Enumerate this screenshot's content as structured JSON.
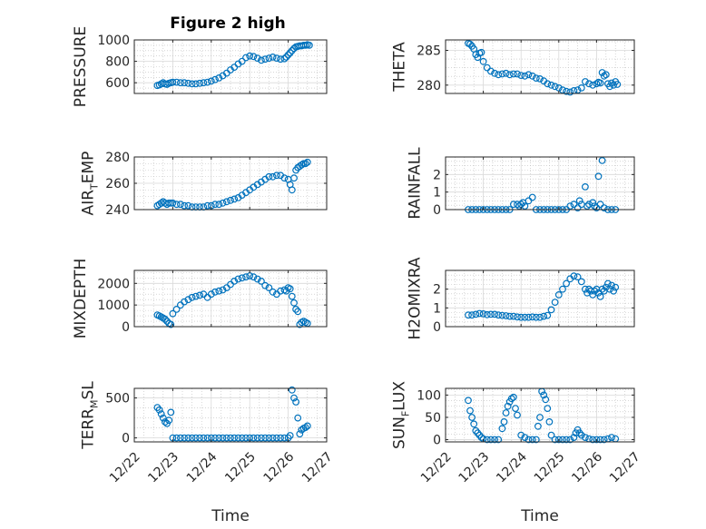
{
  "figure": {
    "title": "Figure 2 high",
    "marker_color": "#0072BD",
    "time_axis": {
      "xlabel": "Time",
      "xlim": [
        "12/22",
        "12/27"
      ],
      "tick_labels": [
        "12/22",
        "12/23",
        "12/24",
        "12/25",
        "12/26",
        "12/27"
      ]
    }
  },
  "chart_data": [
    {
      "type": "scatter",
      "title": "Figure 2 high",
      "ylabel": {
        "main": "PRESSURE",
        "sub": "",
        "rest": ""
      },
      "ylim": [
        500,
        1000
      ],
      "yticks": [
        600,
        800,
        1000
      ],
      "xlabel": "",
      "grid": true,
      "x": [
        22.6,
        22.65,
        22.7,
        22.75,
        22.8,
        22.85,
        22.9,
        22.95,
        23.0,
        23.1,
        23.2,
        23.3,
        23.4,
        23.5,
        23.6,
        23.7,
        23.8,
        23.9,
        24.0,
        24.1,
        24.2,
        24.3,
        24.4,
        24.5,
        24.6,
        24.7,
        24.8,
        24.9,
        25.0,
        25.1,
        25.2,
        25.3,
        25.4,
        25.5,
        25.6,
        25.7,
        25.8,
        25.9,
        25.95,
        26.0,
        26.05,
        26.1,
        26.15,
        26.2,
        26.25,
        26.3,
        26.35,
        26.4,
        26.45,
        26.5,
        26.55
      ],
      "y": [
        575,
        580,
        590,
        600,
        590,
        585,
        595,
        600,
        605,
        605,
        600,
        600,
        595,
        590,
        590,
        595,
        600,
        605,
        615,
        630,
        645,
        665,
        690,
        720,
        745,
        775,
        800,
        835,
        850,
        845,
        830,
        810,
        820,
        830,
        840,
        830,
        820,
        825,
        840,
        860,
        880,
        900,
        920,
        935,
        940,
        945,
        945,
        950,
        950,
        955,
        950
      ]
    },
    {
      "type": "scatter",
      "ylabel": {
        "main": "THETA",
        "sub": "",
        "rest": ""
      },
      "ylim": [
        278.8,
        286.5
      ],
      "yticks": [
        280,
        285
      ],
      "xlabel": "",
      "grid": true,
      "x": [
        22.6,
        22.65,
        22.7,
        22.75,
        22.8,
        22.85,
        22.9,
        22.95,
        23.0,
        23.1,
        23.2,
        23.3,
        23.4,
        23.5,
        23.6,
        23.7,
        23.8,
        23.9,
        24.0,
        24.1,
        24.2,
        24.3,
        24.4,
        24.5,
        24.6,
        24.7,
        24.8,
        24.9,
        25.0,
        25.1,
        25.2,
        25.3,
        25.4,
        25.5,
        25.6,
        25.7,
        25.8,
        25.9,
        26.0,
        26.05,
        26.1,
        26.15,
        26.2,
        26.25,
        26.3,
        26.35,
        26.4,
        26.45,
        26.5,
        26.55
      ],
      "y": [
        286.0,
        285.9,
        285.6,
        285.2,
        284.4,
        284.0,
        284.6,
        284.7,
        283.4,
        282.5,
        282.0,
        281.7,
        281.5,
        281.6,
        281.7,
        281.5,
        281.6,
        281.6,
        281.4,
        281.3,
        281.5,
        281.3,
        281.0,
        280.9,
        280.6,
        280.2,
        280.0,
        279.8,
        279.6,
        279.3,
        279.1,
        279.0,
        279.2,
        279.3,
        279.6,
        280.5,
        280.2,
        280.0,
        280.2,
        280.4,
        280.3,
        281.8,
        281.3,
        281.5,
        280.2,
        279.8,
        280.3,
        280.0,
        280.5,
        280.1
      ]
    },
    {
      "type": "scatter",
      "ylabel": {
        "main": "AIR",
        "sub": "T",
        "rest": "EMP"
      },
      "ylim": [
        240,
        280
      ],
      "yticks": [
        240,
        260,
        280
      ],
      "xlabel": "",
      "grid": true,
      "x": [
        22.6,
        22.65,
        22.7,
        22.75,
        22.8,
        22.85,
        22.9,
        22.95,
        23.0,
        23.1,
        23.2,
        23.3,
        23.4,
        23.5,
        23.6,
        23.7,
        23.8,
        23.9,
        24.0,
        24.1,
        24.2,
        24.3,
        24.4,
        24.5,
        24.6,
        24.7,
        24.8,
        24.9,
        25.0,
        25.1,
        25.2,
        25.3,
        25.4,
        25.5,
        25.6,
        25.7,
        25.8,
        25.9,
        26.0,
        26.05,
        26.1,
        26.15,
        26.2,
        26.25,
        26.3,
        26.35,
        26.4,
        26.45,
        26.5
      ],
      "y": [
        243,
        244,
        245,
        246,
        245,
        244,
        245,
        245,
        245,
        244,
        244,
        243,
        243,
        242,
        242,
        242,
        242,
        243,
        243,
        244,
        244,
        245,
        246,
        247,
        248,
        249,
        251,
        253,
        255,
        257,
        259,
        261,
        263,
        265,
        265,
        266,
        266,
        264,
        263,
        259,
        255,
        264,
        270,
        272,
        273,
        274,
        275,
        275,
        276
      ]
    },
    {
      "type": "scatter",
      "ylabel": {
        "main": "RAINFALL",
        "sub": "",
        "rest": ""
      },
      "ylim": [
        0,
        3
      ],
      "yticks": [
        0,
        1,
        2
      ],
      "xlabel": "",
      "grid": true,
      "x": [
        22.6,
        22.7,
        22.8,
        22.9,
        23.0,
        23.1,
        23.2,
        23.3,
        23.4,
        23.5,
        23.6,
        23.7,
        23.8,
        23.9,
        23.95,
        24.0,
        24.05,
        24.1,
        24.2,
        24.3,
        24.4,
        24.5,
        24.6,
        24.7,
        24.8,
        24.9,
        25.0,
        25.1,
        25.2,
        25.3,
        25.4,
        25.5,
        25.55,
        25.6,
        25.7,
        25.75,
        25.8,
        25.9,
        25.95,
        26.0,
        26.05,
        26.1,
        26.15,
        26.2,
        26.3,
        26.4,
        26.5
      ],
      "y": [
        0,
        0,
        0,
        0,
        0,
        0,
        0,
        0,
        0,
        0,
        0,
        0,
        0.3,
        0.3,
        0.2,
        0.3,
        0.4,
        0.2,
        0.5,
        0.7,
        0,
        0,
        0,
        0,
        0,
        0,
        0,
        0,
        0,
        0.2,
        0.3,
        0.1,
        0.5,
        0.3,
        1.3,
        0.2,
        0.3,
        0.4,
        0.2,
        0.1,
        1.9,
        0.3,
        2.8,
        0.1,
        0,
        0,
        0
      ]
    },
    {
      "type": "scatter",
      "ylabel": {
        "main": "MIXDEPTH",
        "sub": "",
        "rest": ""
      },
      "ylim": [
        0,
        2600
      ],
      "yticks": [
        0,
        1000,
        2000
      ],
      "xlabel": "",
      "grid": true,
      "x": [
        22.6,
        22.65,
        22.7,
        22.75,
        22.8,
        22.85,
        22.9,
        22.95,
        23.0,
        23.1,
        23.2,
        23.3,
        23.4,
        23.5,
        23.6,
        23.7,
        23.8,
        23.9,
        24.0,
        24.1,
        24.2,
        24.3,
        24.4,
        24.5,
        24.6,
        24.7,
        24.8,
        24.9,
        25.0,
        25.1,
        25.2,
        25.3,
        25.4,
        25.5,
        25.6,
        25.7,
        25.8,
        25.9,
        25.95,
        26.0,
        26.05,
        26.1,
        26.15,
        26.2,
        26.25,
        26.3,
        26.35,
        26.4,
        26.45,
        26.5
      ],
      "y": [
        540,
        500,
        450,
        400,
        350,
        250,
        150,
        100,
        600,
        800,
        1000,
        1150,
        1250,
        1350,
        1400,
        1450,
        1500,
        1350,
        1500,
        1600,
        1650,
        1700,
        1800,
        1950,
        2100,
        2200,
        2250,
        2300,
        2350,
        2300,
        2200,
        2100,
        1900,
        1800,
        1600,
        1500,
        1650,
        1700,
        1650,
        1800,
        1750,
        1400,
        1100,
        800,
        700,
        100,
        200,
        250,
        200,
        150
      ]
    },
    {
      "type": "scatter",
      "ylabel": {
        "main": "H2OMIXRA",
        "sub": "",
        "rest": ""
      },
      "ylim": [
        0,
        3
      ],
      "yticks": [
        0,
        1,
        2
      ],
      "xlabel": "",
      "grid": true,
      "x": [
        22.6,
        22.7,
        22.8,
        22.9,
        23.0,
        23.1,
        23.2,
        23.3,
        23.4,
        23.5,
        23.6,
        23.7,
        23.8,
        23.9,
        24.0,
        24.1,
        24.2,
        24.3,
        24.4,
        24.5,
        24.6,
        24.7,
        24.8,
        24.9,
        25.0,
        25.1,
        25.2,
        25.3,
        25.4,
        25.5,
        25.6,
        25.7,
        25.75,
        25.8,
        25.85,
        25.9,
        25.95,
        26.0,
        26.05,
        26.1,
        26.15,
        26.2,
        26.25,
        26.3,
        26.35,
        26.4,
        26.45,
        26.5
      ],
      "y": [
        0.62,
        0.62,
        0.66,
        0.7,
        0.68,
        0.64,
        0.66,
        0.66,
        0.62,
        0.6,
        0.58,
        0.55,
        0.55,
        0.52,
        0.5,
        0.5,
        0.5,
        0.52,
        0.5,
        0.5,
        0.55,
        0.6,
        0.9,
        1.3,
        1.7,
        2.0,
        2.3,
        2.55,
        2.7,
        2.65,
        2.4,
        2.0,
        1.8,
        2.0,
        1.9,
        1.7,
        1.9,
        2.0,
        1.8,
        1.6,
        2.0,
        1.9,
        2.1,
        2.3,
        2.0,
        2.2,
        1.9,
        2.1
      ]
    },
    {
      "type": "scatter",
      "ylabel": {
        "main": "TERR",
        "sub": "M",
        "rest": "SL"
      },
      "ylim": [
        -50,
        620
      ],
      "yticks": [
        0,
        500
      ],
      "xlabel": "Time",
      "grid": true,
      "x": [
        22.6,
        22.65,
        22.7,
        22.75,
        22.8,
        22.85,
        22.9,
        22.95,
        23.0,
        23.1,
        23.2,
        23.3,
        23.4,
        23.5,
        23.6,
        23.7,
        23.8,
        23.9,
        24.0,
        24.1,
        24.2,
        24.3,
        24.4,
        24.5,
        24.6,
        24.7,
        24.8,
        24.9,
        25.0,
        25.1,
        25.2,
        25.3,
        25.4,
        25.5,
        25.6,
        25.7,
        25.8,
        25.9,
        26.0,
        26.05,
        26.1,
        26.15,
        26.2,
        26.25,
        26.3,
        26.35,
        26.4,
        26.45,
        26.5
      ],
      "y": [
        380,
        350,
        300,
        250,
        200,
        180,
        220,
        320,
        0,
        0,
        0,
        0,
        0,
        0,
        0,
        0,
        0,
        0,
        0,
        0,
        0,
        0,
        0,
        0,
        0,
        0,
        0,
        0,
        0,
        0,
        0,
        0,
        0,
        0,
        0,
        0,
        0,
        0,
        0,
        30,
        600,
        500,
        450,
        250,
        50,
        100,
        120,
        130,
        150
      ]
    },
    {
      "type": "scatter",
      "ylabel": {
        "main": "SUN",
        "sub": "F",
        "rest": "LUX"
      },
      "ylim": [
        -5,
        115
      ],
      "yticks": [
        0,
        50,
        100
      ],
      "xlabel": "Time",
      "grid": true,
      "x": [
        22.6,
        22.65,
        22.7,
        22.75,
        22.8,
        22.85,
        22.9,
        22.95,
        23.0,
        23.1,
        23.2,
        23.3,
        23.4,
        23.5,
        23.55,
        23.6,
        23.65,
        23.7,
        23.75,
        23.8,
        23.85,
        23.9,
        24.0,
        24.1,
        24.2,
        24.3,
        24.4,
        24.45,
        24.5,
        24.55,
        24.6,
        24.65,
        24.7,
        24.75,
        24.8,
        24.9,
        25.0,
        25.1,
        25.2,
        25.3,
        25.4,
        25.45,
        25.5,
        25.55,
        25.6,
        25.7,
        25.8,
        25.9,
        26.0,
        26.1,
        26.2,
        26.3,
        26.4,
        26.5
      ],
      "y": [
        88,
        65,
        50,
        35,
        20,
        15,
        10,
        5,
        2,
        0,
        0,
        0,
        0,
        25,
        40,
        60,
        75,
        85,
        92,
        95,
        70,
        55,
        10,
        5,
        0,
        0,
        0,
        30,
        50,
        108,
        100,
        90,
        70,
        40,
        10,
        0,
        0,
        0,
        0,
        0,
        5,
        15,
        22,
        15,
        10,
        5,
        2,
        0,
        0,
        0,
        0,
        2,
        5,
        2
      ]
    }
  ]
}
